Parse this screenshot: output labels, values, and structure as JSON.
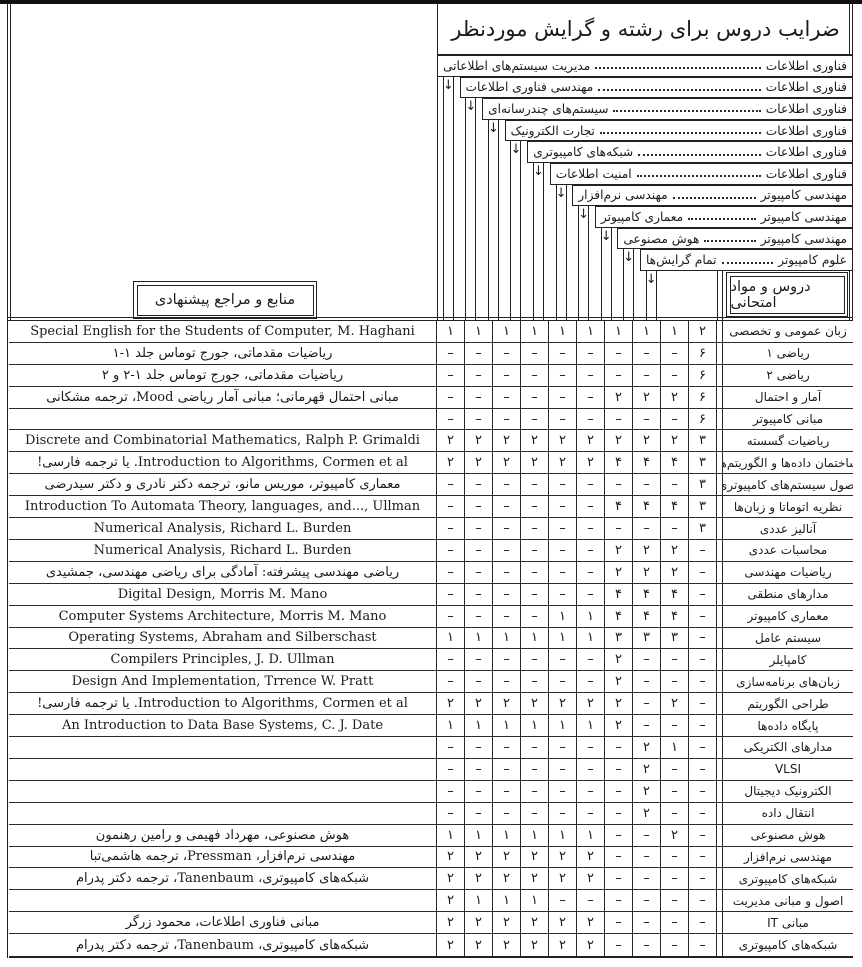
{
  "page": {
    "title": "ضرایب دروس برای رشته و گرایش موردنظر",
    "sources_box_label": "منابع و مراجع پیشنهادی",
    "courses_box_label": "دروس و مواد امتحانی"
  },
  "arrow_glyph": "↓",
  "colors": {
    "paper": "#ffffff",
    "ink": "#1b1b1b"
  },
  "values_order": "left-to-right (index 0 = leftmost column = first major below)",
  "majors": [
    {
      "field": "فناوری اطلاعات",
      "branch": "مدیریت سیستم‌های اطلاعاتی"
    },
    {
      "field": "فناوری اطلاعات",
      "branch": "مهندسی فناوری اطلاعات"
    },
    {
      "field": "فناوری اطلاعات",
      "branch": "سیستم‌های چندرسانه‌ای"
    },
    {
      "field": "فناوری اطلاعات",
      "branch": "تجارت الکترونیک"
    },
    {
      "field": "فناوری اطلاعات",
      "branch": "شبکه‌های کامپیوتری"
    },
    {
      "field": "فناوری اطلاعات",
      "branch": "امنیت اطلاعات"
    },
    {
      "field": "مهندسی کامپیوتر",
      "branch": "مهندسی نرم‌افزار"
    },
    {
      "field": "مهندسی کامپیوتر",
      "branch": "معماری کامپیوتر"
    },
    {
      "field": "مهندسی کامپیوتر",
      "branch": "هوش مصنوعی"
    },
    {
      "field": "علوم کامپیوتر",
      "branch": "تمام گرایش‌ها"
    }
  ],
  "rows": [
    {
      "course": "زبان عمومی و تخصصی",
      "source": "Special English for the Students of Computer, M. Haghani",
      "values": [
        "۱",
        "۱",
        "۱",
        "۱",
        "۱",
        "۱",
        "۱",
        "۱",
        "۱",
        "۲"
      ]
    },
    {
      "course": "ریاضی ۱",
      "source": "ریاضیات مقدماتی، جورج توماس جلد ۱-۱",
      "values": [
        "–",
        "–",
        "–",
        "–",
        "–",
        "–",
        "–",
        "–",
        "–",
        "۶"
      ]
    },
    {
      "course": "ریاضی ۲",
      "source": "ریاضیات مقدماتی، جورج توماس جلد ۱-۲ و ۲",
      "values": [
        "–",
        "–",
        "–",
        "–",
        "–",
        "–",
        "–",
        "–",
        "–",
        "۶"
      ]
    },
    {
      "course": "آمار و احتمال",
      "source": "مبانی احتمال قهرمانی؛ مبانی آمار ریاضی Mood، ترجمه مشکانی",
      "values": [
        "–",
        "–",
        "–",
        "–",
        "–",
        "–",
        "۲",
        "۲",
        "۲",
        "۶"
      ]
    },
    {
      "course": "مبانی کامپیوتر",
      "source": "",
      "values": [
        "–",
        "–",
        "–",
        "–",
        "–",
        "–",
        "–",
        "–",
        "–",
        "۶"
      ]
    },
    {
      "course": "ریاضیات گسسته",
      "source": "Discrete and Combinatorial Mathematics, Ralph P. Grimaldi",
      "values": [
        "۲",
        "۲",
        "۲",
        "۲",
        "۲",
        "۲",
        "۲",
        "۲",
        "۲",
        "۳"
      ]
    },
    {
      "course": "ساختمان داده‌ها و الگوریتم‌ها",
      "source": "Introduction to Algorithms, Cormen et al. یا ترجمه فارسی!",
      "values": [
        "۲",
        "۲",
        "۲",
        "۲",
        "۲",
        "۲",
        "۴",
        "۴",
        "۴",
        "۳"
      ]
    },
    {
      "course": "اصول سیستم‌های کامپیوتری",
      "source": "معماری کامپیوتر، موریس مانو، ترجمه دکتر نادری و دکتر سیدرضی",
      "values": [
        "–",
        "–",
        "–",
        "–",
        "–",
        "–",
        "–",
        "–",
        "–",
        "۳"
      ]
    },
    {
      "course": "نظریه اتوماتا و زبان‌ها",
      "source": "Introduction To Automata Theory, languages, and..., Ullman",
      "values": [
        "–",
        "–",
        "–",
        "–",
        "–",
        "–",
        "۴",
        "۴",
        "۴",
        "۳"
      ]
    },
    {
      "course": "آنالیز عددی",
      "source": "Numerical Analysis, Richard L. Burden",
      "values": [
        "–",
        "–",
        "–",
        "–",
        "–",
        "–",
        "–",
        "–",
        "–",
        "۳"
      ]
    },
    {
      "course": "محاسبات عددی",
      "source": "Numerical Analysis, Richard L. Burden",
      "values": [
        "–",
        "–",
        "–",
        "–",
        "–",
        "–",
        "۲",
        "۲",
        "۲",
        "–"
      ]
    },
    {
      "course": "ریاضیات مهندسی",
      "source": "ریاضی مهندسی پیشرفته: آمادگی برای ریاضی مهندسی، جمشیدی",
      "values": [
        "–",
        "–",
        "–",
        "–",
        "–",
        "–",
        "۲",
        "۲",
        "۲",
        "–"
      ]
    },
    {
      "course": "مدارهای منطقی",
      "source": "Digital Design, Morris M. Mano",
      "values": [
        "–",
        "–",
        "–",
        "–",
        "–",
        "–",
        "۴",
        "۴",
        "۴",
        "–"
      ]
    },
    {
      "course": "معماری کامپیوتر",
      "source": "Computer Systems Architecture, Morris M. Mano",
      "values": [
        "–",
        "–",
        "–",
        "–",
        "۱",
        "۱",
        "۴",
        "۴",
        "۴",
        "–"
      ]
    },
    {
      "course": "سیستم عامل",
      "source": "Operating Systems, Abraham and Silberschast",
      "values": [
        "۱",
        "۱",
        "۱",
        "۱",
        "۱",
        "۱",
        "۳",
        "۳",
        "۳",
        "–"
      ]
    },
    {
      "course": "کامپایلر",
      "source": "Compilers Principles, J. D. Ullman",
      "values": [
        "–",
        "–",
        "–",
        "–",
        "–",
        "–",
        "۲",
        "–",
        "–",
        "–"
      ]
    },
    {
      "course": "زبان‌های برنامه‌سازی",
      "source": "Design And Implementation, Trrence W. Pratt",
      "values": [
        "–",
        "–",
        "–",
        "–",
        "–",
        "–",
        "۲",
        "–",
        "–",
        "–"
      ]
    },
    {
      "course": "طراحی الگوریتم",
      "source": "Introduction to Algorithms, Cormen et al. یا ترجمه فارسی!",
      "values": [
        "۲",
        "۲",
        "۲",
        "۲",
        "۲",
        "۲",
        "۲",
        "–",
        "۲",
        "–"
      ]
    },
    {
      "course": "پایگاه داده‌ها",
      "source": "An Introduction to Data Base Systems, C. J. Date",
      "values": [
        "۱",
        "۱",
        "۱",
        "۱",
        "۱",
        "۱",
        "۲",
        "–",
        "–",
        "–"
      ]
    },
    {
      "course": "مدارهای الکتریکی",
      "source": "",
      "values": [
        "–",
        "–",
        "–",
        "–",
        "–",
        "–",
        "–",
        "۲",
        "۱",
        "–"
      ]
    },
    {
      "course": "VLSI",
      "source": "",
      "values": [
        "–",
        "–",
        "–",
        "–",
        "–",
        "–",
        "–",
        "۲",
        "–",
        "–"
      ]
    },
    {
      "course": "الکترونیک دیجیتال",
      "source": "",
      "values": [
        "–",
        "–",
        "–",
        "–",
        "–",
        "–",
        "–",
        "۲",
        "–",
        "–"
      ]
    },
    {
      "course": "انتقال داده",
      "source": "",
      "values": [
        "–",
        "–",
        "–",
        "–",
        "–",
        "–",
        "–",
        "۲",
        "–",
        "–"
      ]
    },
    {
      "course": "هوش مصنوعی",
      "source": "هوش مصنوعی، مهرداد فهیمی و رامین رهنمون",
      "values": [
        "۱",
        "۱",
        "۱",
        "۱",
        "۱",
        "۱",
        "–",
        "–",
        "۲",
        "–"
      ]
    },
    {
      "course": "مهندسی نرم‌افزار",
      "source": "مهندسی نرم‌افزار، Pressman، ترجمه هاشمی‌تبا",
      "values": [
        "۲",
        "۲",
        "۲",
        "۲",
        "۲",
        "۲",
        "–",
        "–",
        "–",
        "–"
      ]
    },
    {
      "course": "شبکه‌های کامپیوتری",
      "source": "شبکه‌های کامپیوتری، Tanenbaum، ترجمه دکتر پدرام",
      "values": [
        "۲",
        "۲",
        "۲",
        "۲",
        "۲",
        "۲",
        "–",
        "–",
        "–",
        "–"
      ]
    },
    {
      "course": "اصول و مبانی مدیریت",
      "source": "",
      "values": [
        "۲",
        "۱",
        "۱",
        "۱",
        "–",
        "–",
        "–",
        "–",
        "–",
        "–"
      ]
    },
    {
      "course": "مبانی IT",
      "source": "مبانی فناوری اطلاعات، محمود زرگر",
      "values": [
        "۲",
        "۲",
        "۲",
        "۲",
        "۲",
        "۲",
        "–",
        "–",
        "–",
        "–"
      ]
    },
    {
      "course": "شبکه‌های کامپیوتری",
      "source": "شبکه‌های کامپیوتری، Tanenbaum، ترجمه دکتر پدرام",
      "values": [
        "۲",
        "۲",
        "۲",
        "۲",
        "۲",
        "۲",
        "–",
        "–",
        "–",
        "–"
      ]
    }
  ]
}
